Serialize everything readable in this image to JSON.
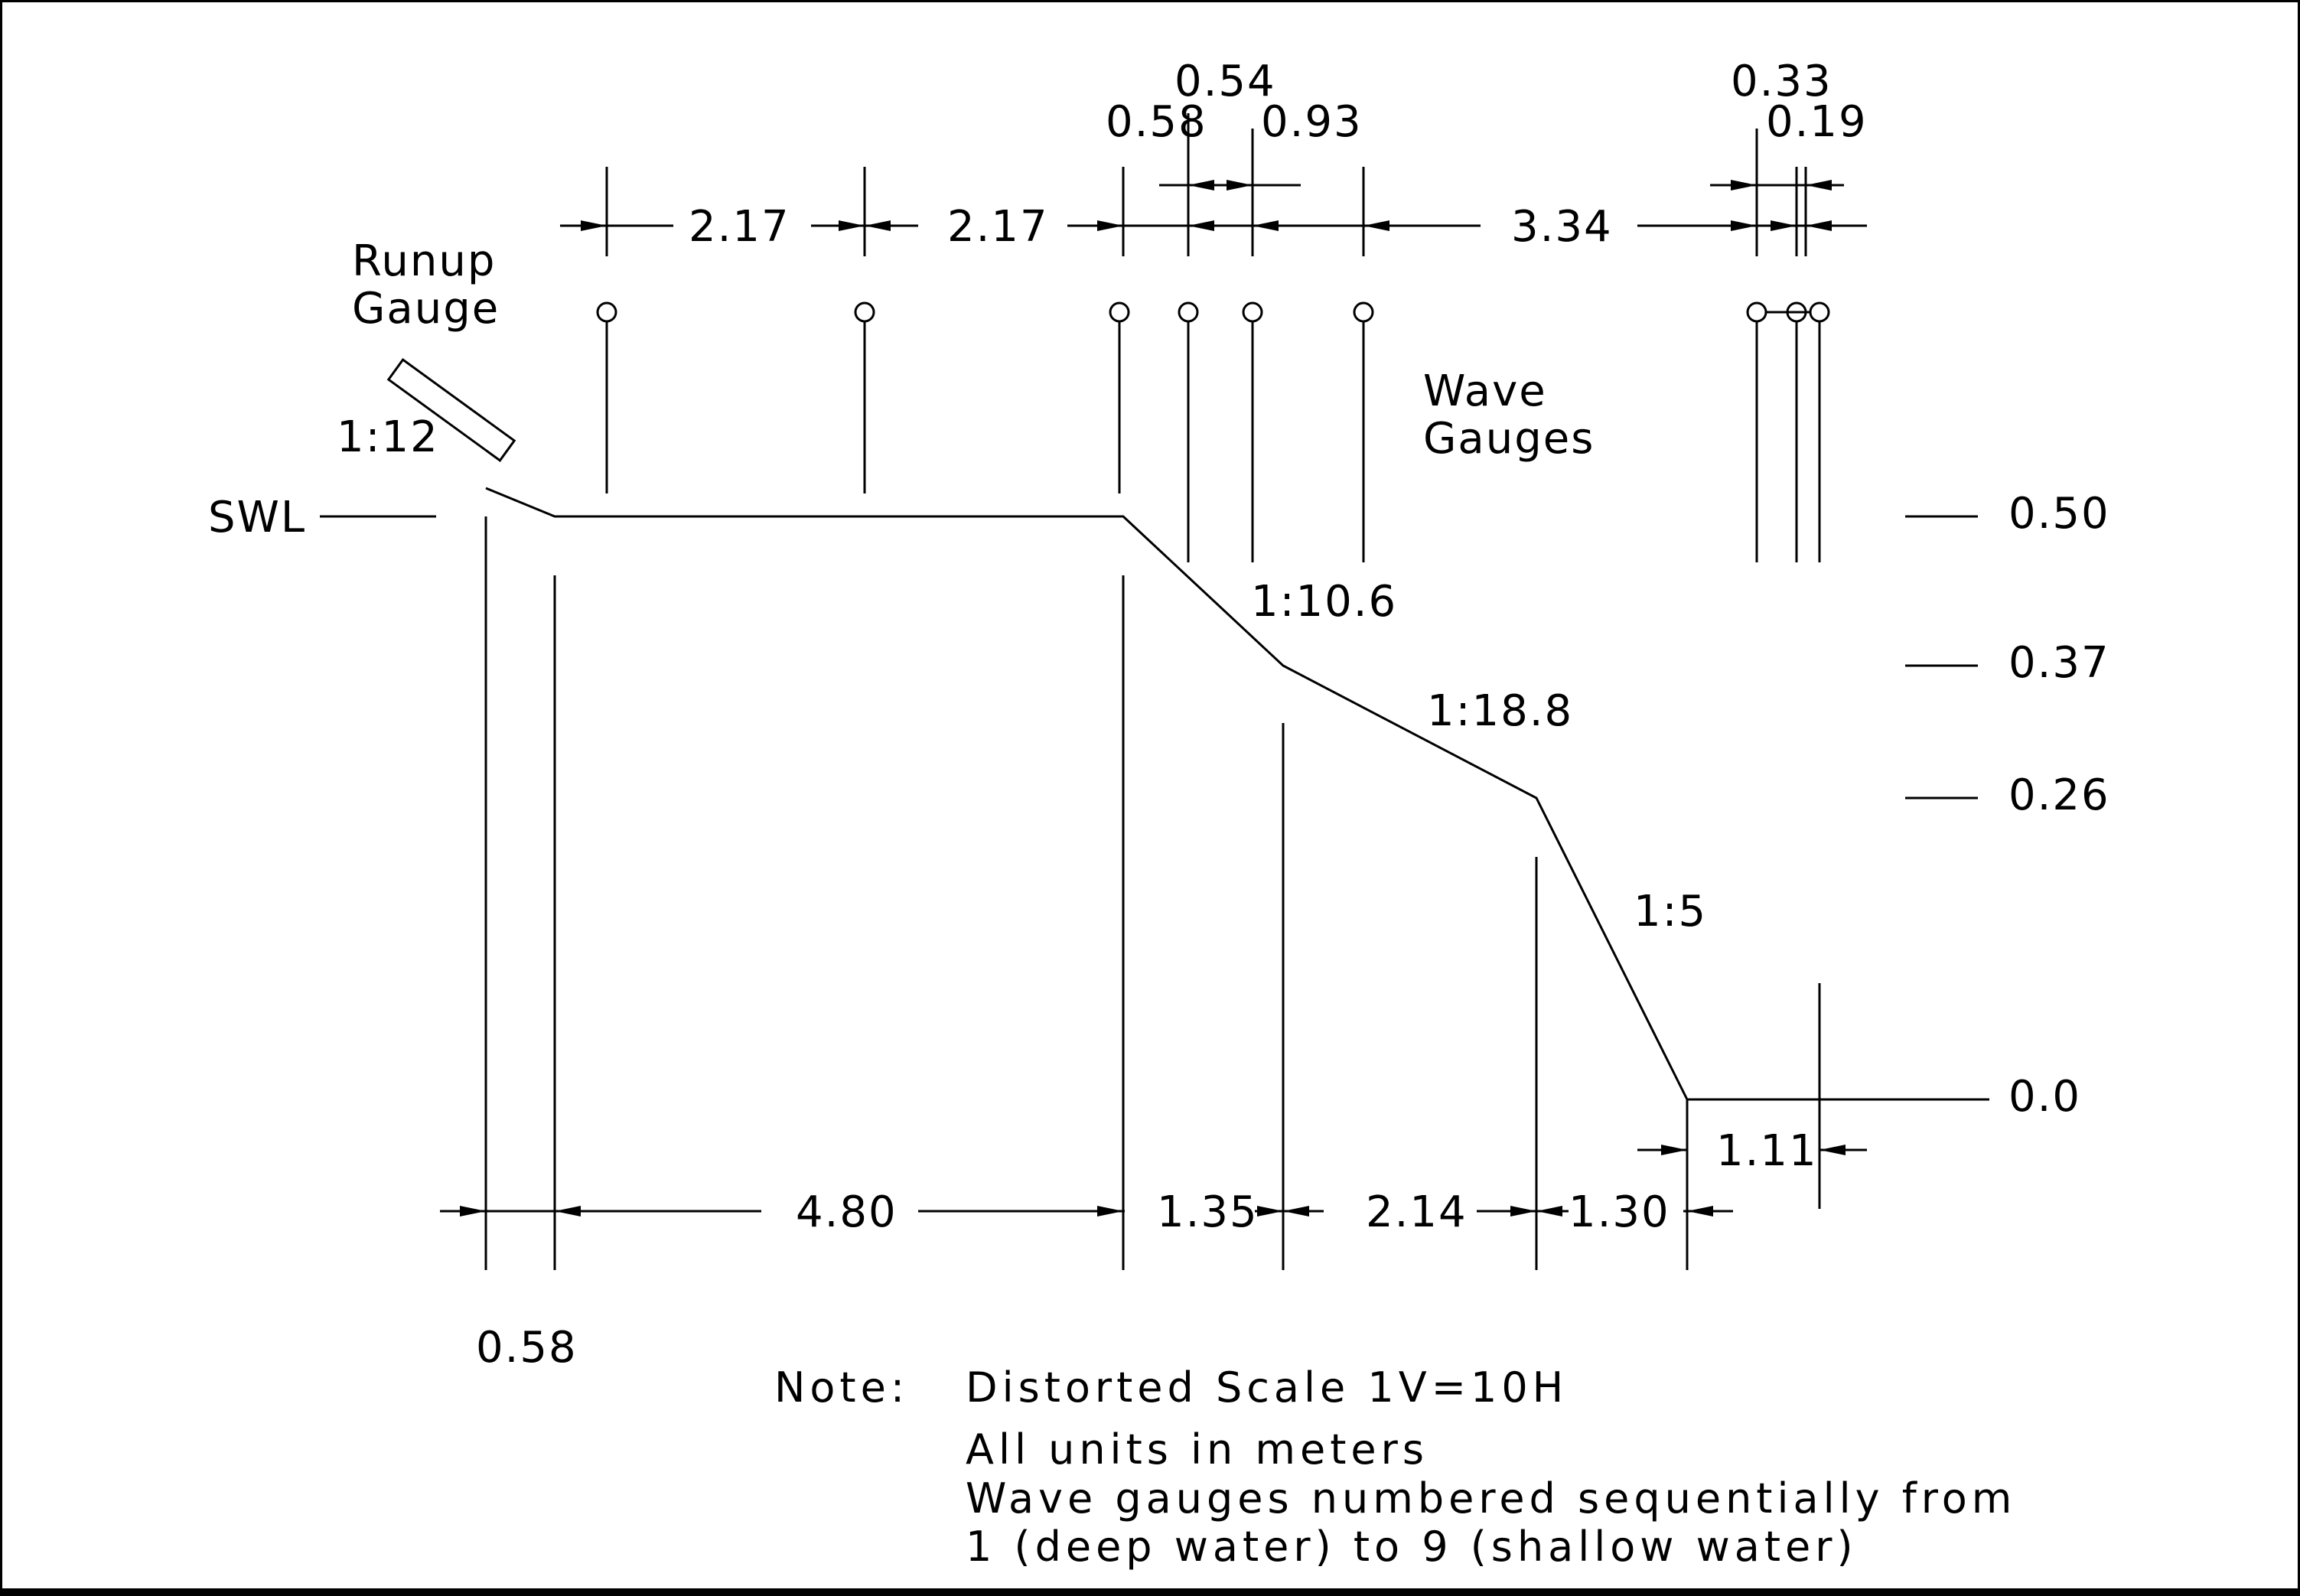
{
  "labels": {
    "swl": "SWL",
    "runup_gauge_line1": "Runup",
    "runup_gauge_line2": "Gauge",
    "wave_gauges_line1": "Wave",
    "wave_gauges_line2": "Gauges",
    "slope_runup": "1:12",
    "slope_1": "1:10.6",
    "slope_2": "1:18.8",
    "slope_3": "1:5"
  },
  "elevations": [
    "0.50",
    "0.37",
    "0.26",
    "0.0"
  ],
  "top_dimensions": {
    "d1": "2.17",
    "d2": "2.17",
    "d3": "0.58",
    "d4": "0.54",
    "d5": "0.93",
    "d6": "3.34",
    "d7": "0.33",
    "d8": "0.19"
  },
  "bottom_dimensions": {
    "d1": "0.58",
    "d2": "4.80",
    "d3": "1.35",
    "d4": "2.14",
    "d5": "1.30",
    "d6": "1.11"
  },
  "note": {
    "label": "Note:",
    "line1": "Distorted Scale  1V=10H",
    "line2": "All units in meters",
    "line3": "Wave gauges numbered sequentially from",
    "line4": "1 (deep water) to 9 (shallow water)"
  }
}
